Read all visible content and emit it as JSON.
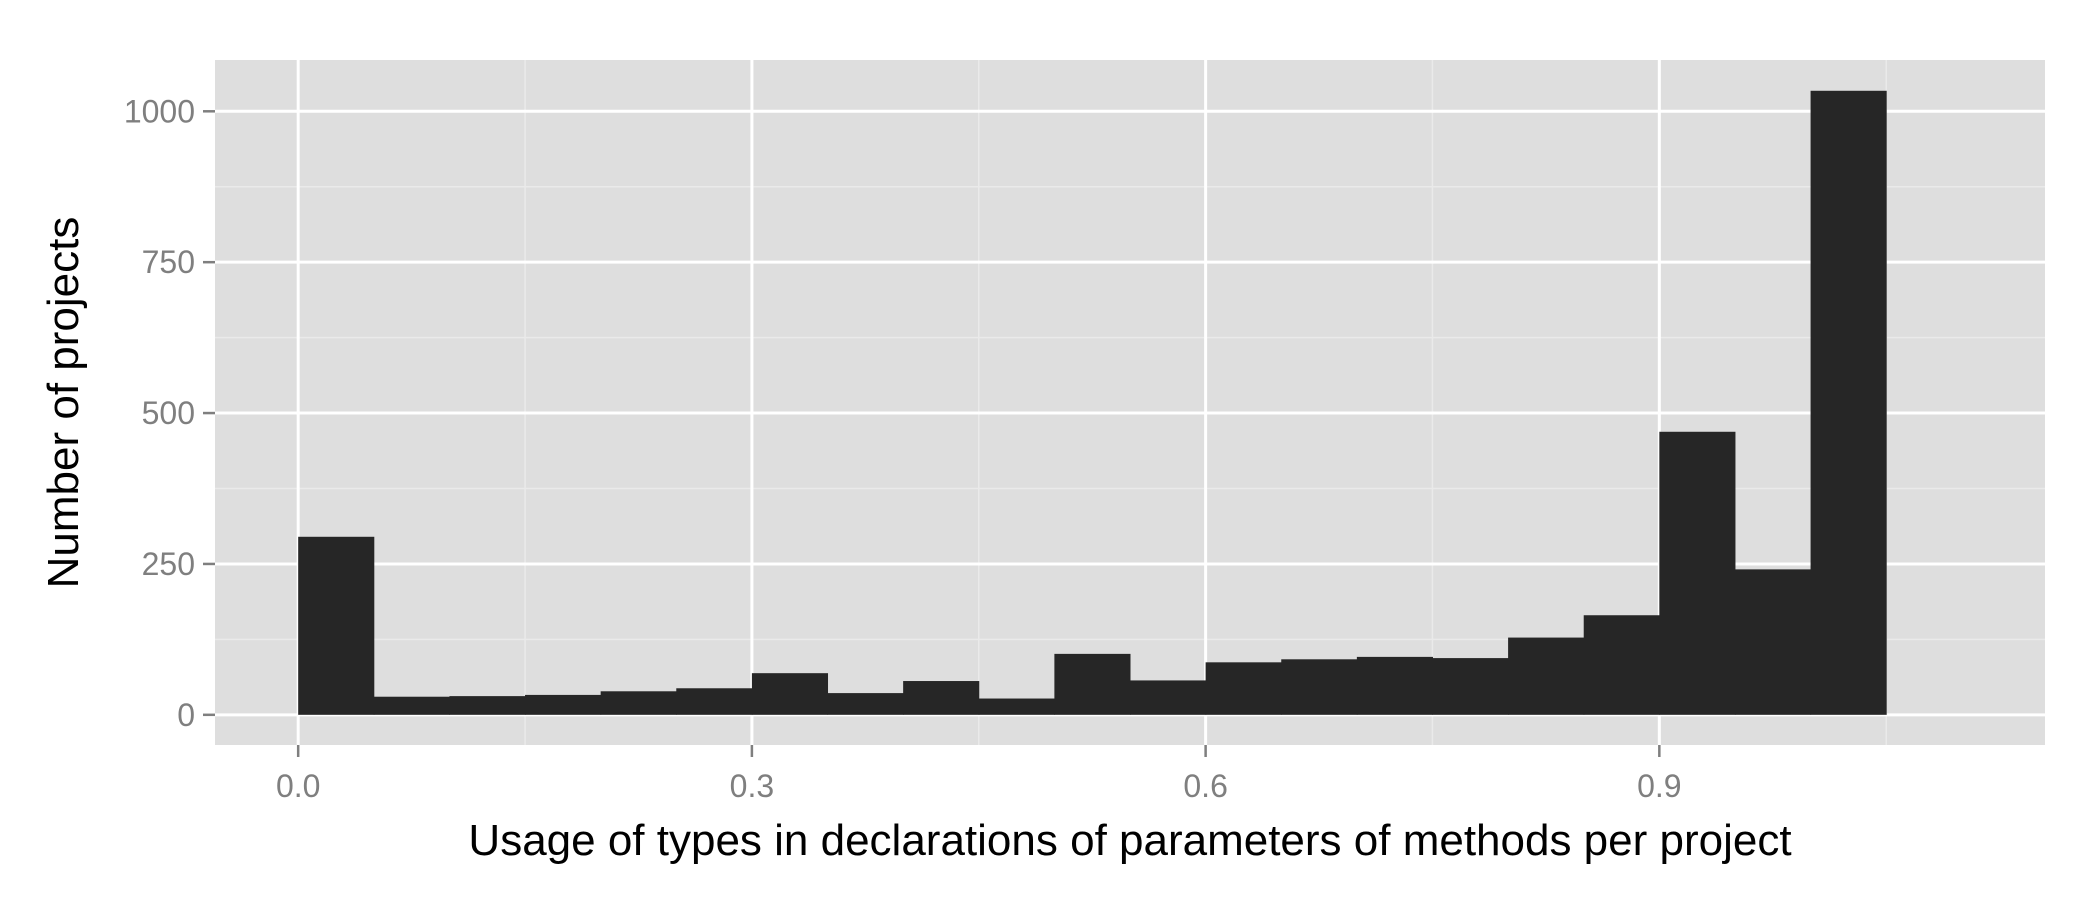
{
  "chart_data": {
    "type": "bar",
    "xlabel": "Usage of types in declarations of parameters of methods per project",
    "ylabel": "Number of projects",
    "bin_width": 0.05,
    "bins": [
      {
        "x0": 0.0,
        "x1": 0.05,
        "count": 295
      },
      {
        "x0": 0.05,
        "x1": 0.1,
        "count": 30
      },
      {
        "x0": 0.1,
        "x1": 0.15,
        "count": 31
      },
      {
        "x0": 0.15,
        "x1": 0.2,
        "count": 33
      },
      {
        "x0": 0.2,
        "x1": 0.25,
        "count": 39
      },
      {
        "x0": 0.25,
        "x1": 0.3,
        "count": 44
      },
      {
        "x0": 0.3,
        "x1": 0.35,
        "count": 69
      },
      {
        "x0": 0.35,
        "x1": 0.4,
        "count": 36
      },
      {
        "x0": 0.4,
        "x1": 0.45,
        "count": 56
      },
      {
        "x0": 0.45,
        "x1": 0.5,
        "count": 27
      },
      {
        "x0": 0.5,
        "x1": 0.55,
        "count": 101
      },
      {
        "x0": 0.55,
        "x1": 0.6,
        "count": 57
      },
      {
        "x0": 0.6,
        "x1": 0.65,
        "count": 87
      },
      {
        "x0": 0.65,
        "x1": 0.7,
        "count": 92
      },
      {
        "x0": 0.7,
        "x1": 0.75,
        "count": 96
      },
      {
        "x0": 0.75,
        "x1": 0.8,
        "count": 94
      },
      {
        "x0": 0.8,
        "x1": 0.85,
        "count": 128
      },
      {
        "x0": 0.85,
        "x1": 0.9,
        "count": 165
      },
      {
        "x0": 0.9,
        "x1": 0.95,
        "count": 469
      },
      {
        "x0": 0.95,
        "x1": 1.0,
        "count": 241
      },
      {
        "x0": 1.0,
        "x1": 1.05,
        "count": 1034
      }
    ],
    "xlim": [
      -0.055,
      1.155
    ],
    "ylim": [
      -50,
      1085
    ],
    "x_ticks": [
      0.0,
      0.3,
      0.6,
      0.9
    ],
    "x_tick_labels": [
      "0.0",
      "0.3",
      "0.6",
      "0.9"
    ],
    "x_minor": [
      0.15,
      0.45,
      0.75,
      1.05
    ],
    "y_ticks": [
      0,
      250,
      500,
      750,
      1000
    ],
    "y_tick_labels": [
      "0",
      "250",
      "500",
      "750",
      "1000"
    ],
    "y_minor": [
      125,
      375,
      625,
      875
    ],
    "grid": true,
    "legend": "none",
    "colors": {
      "panel": "#dedede",
      "grid_major": "#ffffff",
      "grid_minor": "#eaeaea",
      "bar": "#262626",
      "tick_text": "#7f7f7f"
    }
  }
}
